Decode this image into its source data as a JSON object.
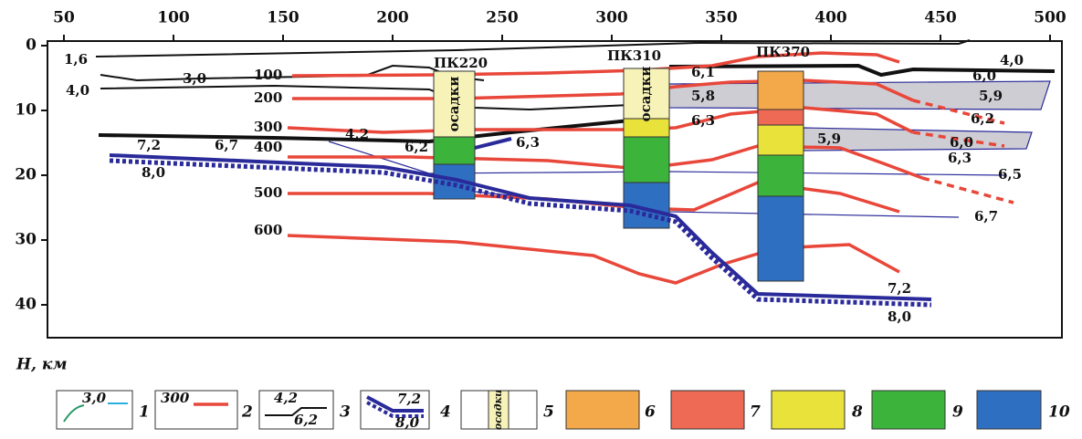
{
  "axes": {
    "x_ticks": [
      50,
      100,
      150,
      200,
      250,
      300,
      350,
      400,
      450,
      500
    ],
    "y_ticks": [
      0,
      10,
      20,
      30,
      40
    ],
    "y_label": "H, км"
  },
  "labels": [
    "1,6",
    "3,0",
    "4,0",
    "4,2",
    "7,2",
    "6,7",
    "8,0",
    "6,2",
    "6,3",
    "100",
    "200",
    "300",
    "400",
    "500",
    "600",
    "6,1",
    "5,8",
    "6,3",
    "4,0",
    "6,0",
    "5,9",
    "6,2",
    "5,9",
    "6,0",
    "6,3",
    "6,5",
    "6,7",
    "7,2",
    "8,0"
  ],
  "boreholes": [
    {
      "name": "ПК220",
      "rock": "осадки"
    },
    {
      "name": "ПК310",
      "rock": "осадки"
    },
    {
      "name": "ПК370"
    }
  ],
  "legend": [
    {
      "number": "1",
      "sample": [
        "3,0"
      ]
    },
    {
      "number": "2",
      "sample": [
        "300"
      ]
    },
    {
      "number": "3",
      "sample": [
        "4,2",
        "6,2"
      ]
    },
    {
      "number": "4",
      "sample": [
        "7,2",
        "8,0"
      ]
    },
    {
      "number": "5",
      "sample": [
        "осадки"
      ]
    },
    {
      "number": "6"
    },
    {
      "number": "7"
    },
    {
      "number": "8"
    },
    {
      "number": "9"
    },
    {
      "number": "10"
    }
  ]
}
